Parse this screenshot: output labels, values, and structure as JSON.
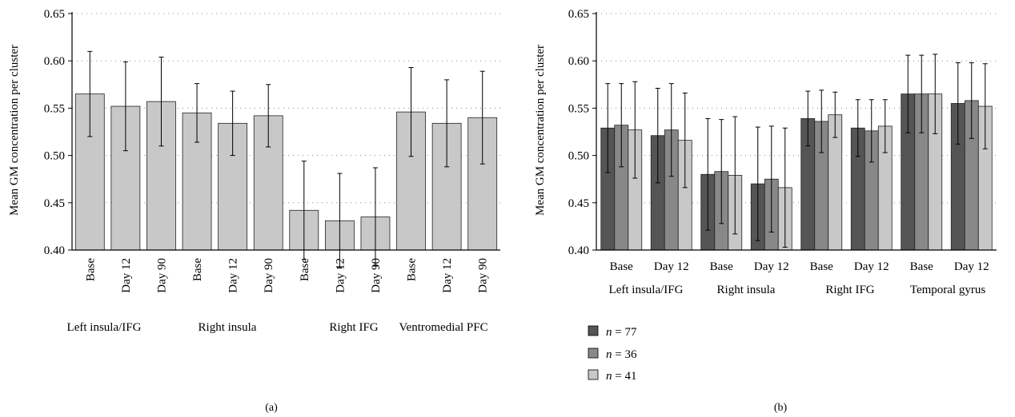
{
  "panel_a": {
    "caption": "(a)",
    "ylabel": "Mean GM concentration per cluster",
    "group_labels": [
      "Left insula/IFG",
      "Right insula",
      "Right IFG",
      "Ventromedial PFC"
    ]
  },
  "panel_b": {
    "caption": "(b)",
    "ylabel": "Mean GM concentration per cluster",
    "group_labels": [
      "Left insula/IFG",
      "Right insula",
      "Right IFG",
      "Temporal gyrus"
    ],
    "legend": [
      {
        "label": "n",
        "value": "= 77"
      },
      {
        "label": "n",
        "value": "= 36"
      },
      {
        "label": "n",
        "value": "= 41"
      }
    ]
  },
  "chart_data": [
    {
      "type": "bar",
      "panel": "(a)",
      "ylabel": "Mean GM concentration per cluster",
      "ylim": [
        0.4,
        0.65
      ],
      "yticks": [
        "0.40",
        "0.45",
        "0.50",
        "0.55",
        "0.60",
        "0.65"
      ],
      "grid": "horizontal dotted",
      "categories": [
        "Base",
        "Day 12",
        "Day 90",
        "Base",
        "Day 12",
        "Day 90",
        "Base",
        "Day 12",
        "Day 90",
        "Base",
        "Day 12",
        "Day 90"
      ],
      "groups": [
        "Left insula/IFG",
        "Right insula",
        "Right IFG",
        "Ventromedial PFC"
      ],
      "values": [
        0.565,
        0.552,
        0.557,
        0.545,
        0.534,
        0.542,
        0.442,
        0.431,
        0.435,
        0.546,
        0.534,
        0.54
      ],
      "error": [
        0.045,
        0.047,
        0.047,
        0.031,
        0.034,
        0.033,
        0.052,
        0.05,
        0.052,
        0.047,
        0.046,
        0.049
      ],
      "color": "#c8c8c8"
    },
    {
      "type": "bar",
      "panel": "(b)",
      "ylabel": "Mean GM concentration per cluster",
      "ylim": [
        0.4,
        0.65
      ],
      "yticks": [
        "0.40",
        "0.45",
        "0.50",
        "0.55",
        "0.60",
        "0.65"
      ],
      "grid": "horizontal dotted",
      "legend_position": "bottom-left",
      "categories": [
        "Base",
        "Day 12",
        "Base",
        "Day 12",
        "Base",
        "Day 12",
        "Base",
        "Day 12"
      ],
      "groups": [
        "Left insula/IFG",
        "Right insula",
        "Right IFG",
        "Temporal gyrus"
      ],
      "series": [
        {
          "name": "n = 77",
          "color": "#555555",
          "values": [
            0.529,
            0.521,
            0.48,
            0.47,
            0.539,
            0.529,
            0.565,
            0.555
          ],
          "error": [
            0.047,
            0.05,
            0.059,
            0.06,
            0.029,
            0.03,
            0.041,
            0.043
          ]
        },
        {
          "name": "n = 36",
          "color": "#888888",
          "values": [
            0.532,
            0.527,
            0.483,
            0.475,
            0.536,
            0.526,
            0.565,
            0.558
          ],
          "error": [
            0.044,
            0.049,
            0.055,
            0.056,
            0.033,
            0.033,
            0.041,
            0.04
          ]
        },
        {
          "name": "n = 41",
          "color": "#c8c8c8",
          "values": [
            0.527,
            0.516,
            0.479,
            0.466,
            0.543,
            0.531,
            0.565,
            0.552
          ],
          "error": [
            0.051,
            0.05,
            0.062,
            0.063,
            0.024,
            0.028,
            0.042,
            0.045
          ]
        }
      ]
    }
  ]
}
